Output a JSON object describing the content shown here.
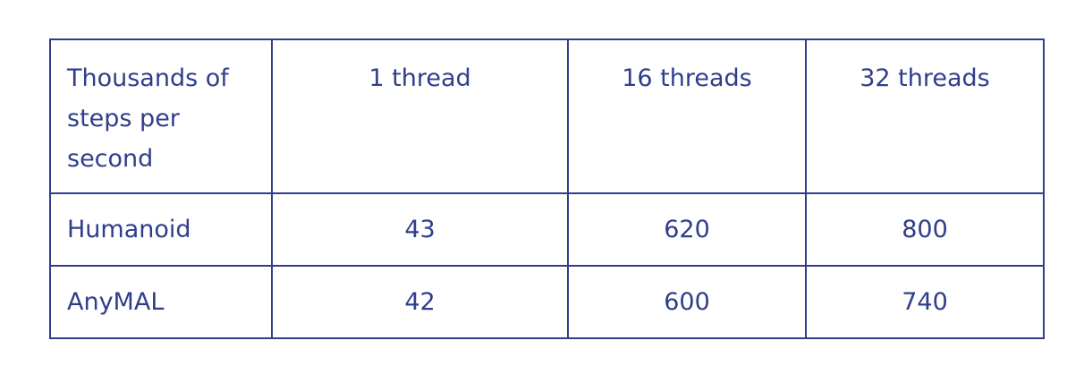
{
  "chart_data": {
    "type": "table",
    "columns": [
      "Thousands of steps per second",
      "1 thread",
      "16 threads",
      "32 threads"
    ],
    "rows": [
      {
        "label": "Humanoid",
        "values": [
          "43",
          "620",
          "800"
        ]
      },
      {
        "label": "AnyMAL",
        "values": [
          "42",
          "600",
          "740"
        ]
      }
    ]
  },
  "colors": {
    "ink": "#2f3e8c",
    "background": "#ffffff"
  }
}
